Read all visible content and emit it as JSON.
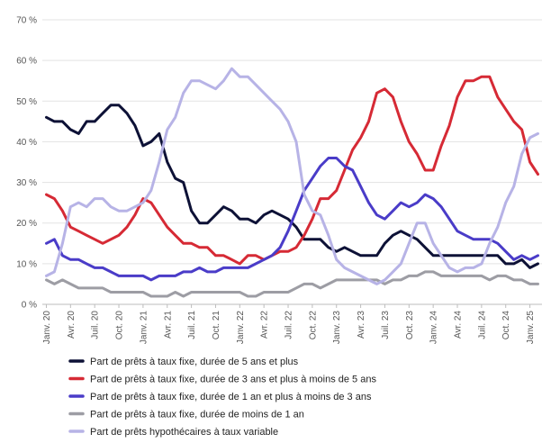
{
  "chart_data": {
    "type": "line",
    "title": "",
    "xlabel": "",
    "ylabel": "",
    "ylim": [
      0,
      70
    ],
    "y_ticks": [
      0,
      10,
      20,
      30,
      40,
      50,
      60,
      70
    ],
    "y_tick_labels": [
      "0 %",
      "10 %",
      "20 %",
      "30 %",
      "40 %",
      "50 %",
      "60 %",
      "70 %"
    ],
    "grid": "horizontal",
    "legend_position": "bottom",
    "x_tick_labels": [
      "Janv. 20",
      "Avr. 20",
      "Juil. 20",
      "Oct. 20",
      "Janv. 21",
      "Avr. 21",
      "Juil. 21",
      "Oct. 21",
      "Janv. 22",
      "Avr. 22",
      "Juil. 22",
      "Oct. 22",
      "Janv. 23",
      "Avr. 23",
      "Juil. 23",
      "Oct. 23",
      "Janv. 24",
      "Avr. 24",
      "Juil. 24",
      "Oct. 24",
      "Janv. 25"
    ],
    "x_tick_every": 3,
    "x": [
      "2020-01",
      "2020-02",
      "2020-03",
      "2020-04",
      "2020-05",
      "2020-06",
      "2020-07",
      "2020-08",
      "2020-09",
      "2020-10",
      "2020-11",
      "2020-12",
      "2021-01",
      "2021-02",
      "2021-03",
      "2021-04",
      "2021-05",
      "2021-06",
      "2021-07",
      "2021-08",
      "2021-09",
      "2021-10",
      "2021-11",
      "2021-12",
      "2022-01",
      "2022-02",
      "2022-03",
      "2022-04",
      "2022-05",
      "2022-06",
      "2022-07",
      "2022-08",
      "2022-09",
      "2022-10",
      "2022-11",
      "2022-12",
      "2023-01",
      "2023-02",
      "2023-03",
      "2023-04",
      "2023-05",
      "2023-06",
      "2023-07",
      "2023-08",
      "2023-09",
      "2023-10",
      "2023-11",
      "2023-12",
      "2024-01",
      "2024-02",
      "2024-03",
      "2024-04",
      "2024-05",
      "2024-06",
      "2024-07",
      "2024-08",
      "2024-09",
      "2024-10",
      "2024-11",
      "2024-12",
      "2025-01",
      "2025-02"
    ],
    "series": [
      {
        "name": "Part de prêts à taux fixe, durée de 5 ans et plus",
        "color": "#0d1136",
        "values": [
          46,
          45,
          45,
          43,
          42,
          45,
          45,
          47,
          49,
          49,
          47,
          44,
          39,
          40,
          42,
          35,
          31,
          30,
          23,
          20,
          20,
          22,
          24,
          23,
          21,
          21,
          20,
          22,
          23,
          22,
          21,
          19,
          16,
          16,
          16,
          14,
          13,
          14,
          13,
          12,
          12,
          12,
          15,
          17,
          18,
          17,
          16,
          14,
          12,
          12,
          12,
          12,
          12,
          12,
          12,
          12,
          12,
          10,
          10,
          11,
          9,
          10
        ]
      },
      {
        "name": "Part de prêts à taux fixe, durée de 3 ans et plus à moins de 5 ans",
        "color": "#d62a35",
        "values": [
          27,
          26,
          23,
          19,
          18,
          17,
          16,
          15,
          16,
          17,
          19,
          22,
          26,
          25,
          22,
          19,
          17,
          15,
          15,
          14,
          14,
          12,
          12,
          11,
          10,
          12,
          12,
          11,
          12,
          13,
          13,
          14,
          17,
          21,
          26,
          26,
          28,
          33,
          38,
          41,
          45,
          52,
          53,
          51,
          45,
          40,
          37,
          33,
          33,
          39,
          44,
          51,
          55,
          55,
          56,
          56,
          51,
          48,
          45,
          43,
          35,
          32
        ]
      },
      {
        "name": "Part de prêts à taux fixe, durée de 1 an et plus à moins de 3 ans",
        "color": "#4a3cc8",
        "values": [
          15,
          16,
          12,
          11,
          11,
          10,
          9,
          9,
          8,
          7,
          7,
          7,
          7,
          6,
          7,
          7,
          7,
          8,
          8,
          9,
          8,
          8,
          9,
          9,
          9,
          9,
          10,
          11,
          12,
          14,
          18,
          23,
          28,
          31,
          34,
          36,
          36,
          34,
          33,
          29,
          25,
          22,
          21,
          23,
          25,
          24,
          25,
          27,
          26,
          24,
          21,
          18,
          17,
          16,
          16,
          16,
          15,
          13,
          11,
          12,
          11,
          12
        ]
      },
      {
        "name": "Part de prêts à taux fixe, durée de moins de 1 an",
        "color": "#9d9da4",
        "values": [
          6,
          5,
          6,
          5,
          4,
          4,
          4,
          4,
          3,
          3,
          3,
          3,
          3,
          2,
          2,
          2,
          3,
          2,
          3,
          3,
          3,
          3,
          3,
          3,
          3,
          2,
          2,
          3,
          3,
          3,
          3,
          4,
          5,
          5,
          4,
          5,
          6,
          6,
          6,
          6,
          6,
          6,
          5,
          6,
          6,
          7,
          7,
          8,
          8,
          7,
          7,
          7,
          7,
          7,
          7,
          6,
          7,
          7,
          6,
          6,
          5,
          5
        ]
      },
      {
        "name": "Part de prêts hypothécaires à taux variable",
        "color": "#b7b3e6",
        "values": [
          7,
          8,
          15,
          24,
          25,
          24,
          26,
          26,
          24,
          23,
          23,
          24,
          25,
          28,
          35,
          43,
          46,
          52,
          55,
          55,
          54,
          53,
          55,
          58,
          56,
          56,
          54,
          52,
          50,
          48,
          45,
          40,
          27,
          23,
          22,
          17,
          11,
          9,
          8,
          7,
          6,
          5,
          6,
          8,
          10,
          15,
          20,
          20,
          15,
          12,
          9,
          8,
          9,
          9,
          10,
          15,
          19,
          25,
          29,
          37,
          41,
          42
        ]
      }
    ]
  }
}
